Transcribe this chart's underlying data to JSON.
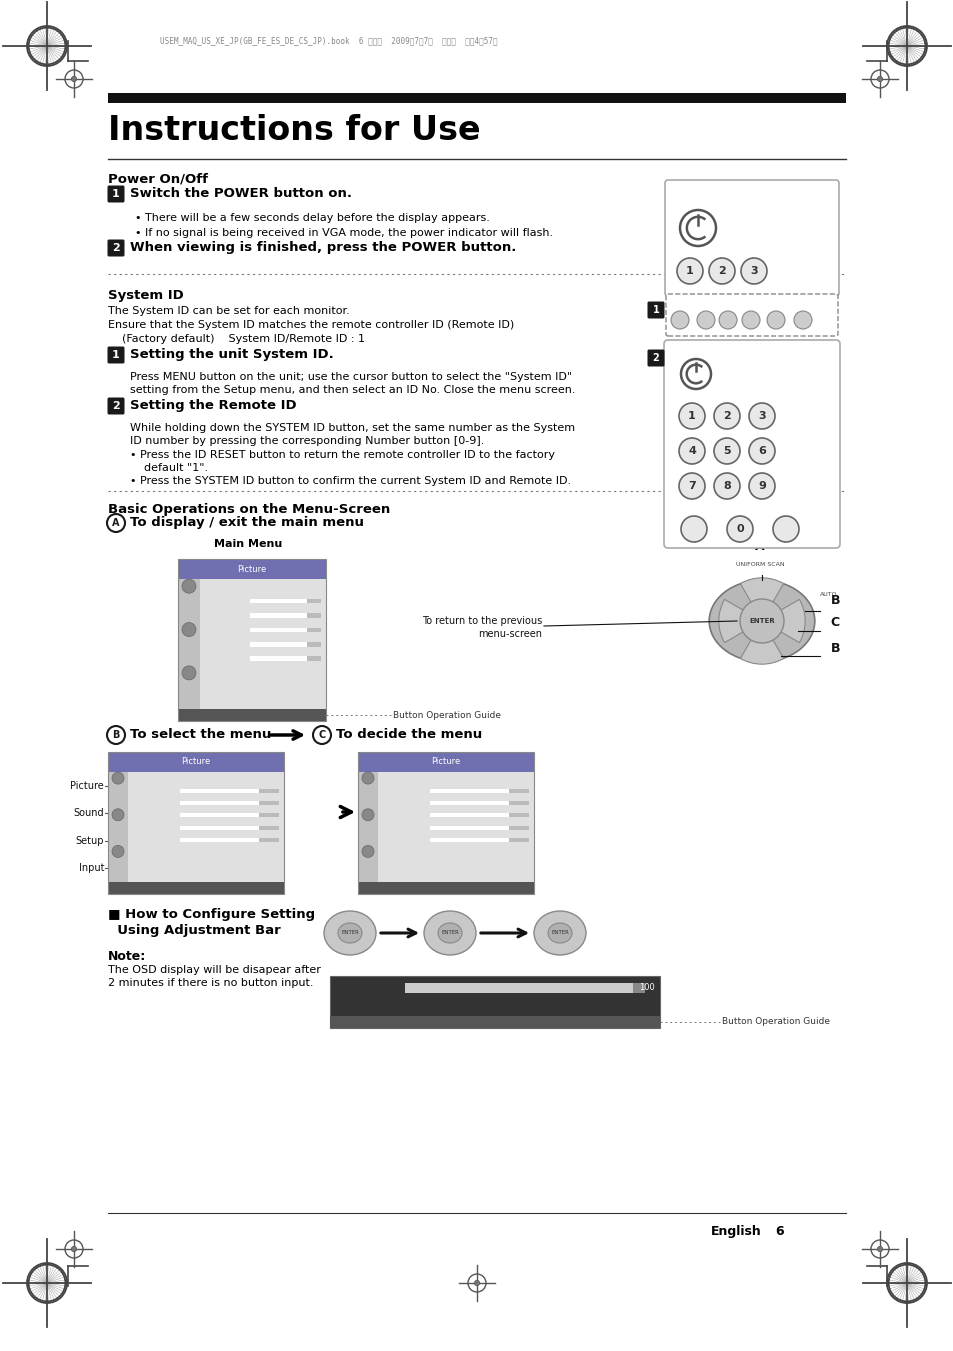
{
  "title": "Instructions for Use",
  "bg_color": "#ffffff",
  "section1_title": "Power On/Off",
  "step1a_bold": "Switch the POWER button on.",
  "step1a_bullets": [
    "There will be a few seconds delay before the display appears.",
    "If no signal is being received in VGA mode, the power indicator will flash."
  ],
  "step2a_bold": "When viewing is finished, press the POWER button.",
  "section2_title": "System ID",
  "section2_body1": "The System ID can be set for each monitor.",
  "section2_body2": "Ensure that the System ID matches the remote controller ID (Remote ID)",
  "section2_body3": "    (Factory default)    System ID/Remote ID : 1",
  "step1b_bold": "Setting the unit System ID.",
  "step1b_body1": "Press MENU button on the unit; use the cursor button to select the \"System ID\"",
  "step1b_body2": "setting from the Setup menu, and then select an ID No. Close the menu screen.",
  "step2b_bold": "Setting the Remote ID",
  "step2b_body1": "While holding down the SYSTEM ID button, set the same number as the System",
  "step2b_body2": "ID number by pressing the corresponding Number button [0-9].",
  "step2b_bullet1a": "Press the ID RESET button to return the remote controller ID to the factory",
  "step2b_bullet1b": "    default \"1\".",
  "step2b_bullet2": "Press the SYSTEM ID button to confirm the current System ID and Remote ID.",
  "section3_title": "Basic Operations on the Menu-Screen",
  "stepA_bold": "To display / exit the main menu",
  "stepB_bold": "To select the menu",
  "stepC_bold": "To decide the menu",
  "how_to_line1": "■ How to Configure Setting",
  "how_to_line2": "  Using Adjustment Bar",
  "note_title": "Note:",
  "note_body1": "The OSD display will be disapear after",
  "note_body2": "2 minutes if there is no button input.",
  "btn_guide": "Button Operation Guide",
  "return_label1": "To return to the previous",
  "return_label2": "menu-screen",
  "main_menu_label": "Main Menu",
  "english_label": "English",
  "page_num": "6",
  "header_text": "USEM_MAQ_US_XE_JP(GB_FE_ES_DE_CS_JP).book  6 ページ  2009年7月7日  火曜日  午後4時57分"
}
